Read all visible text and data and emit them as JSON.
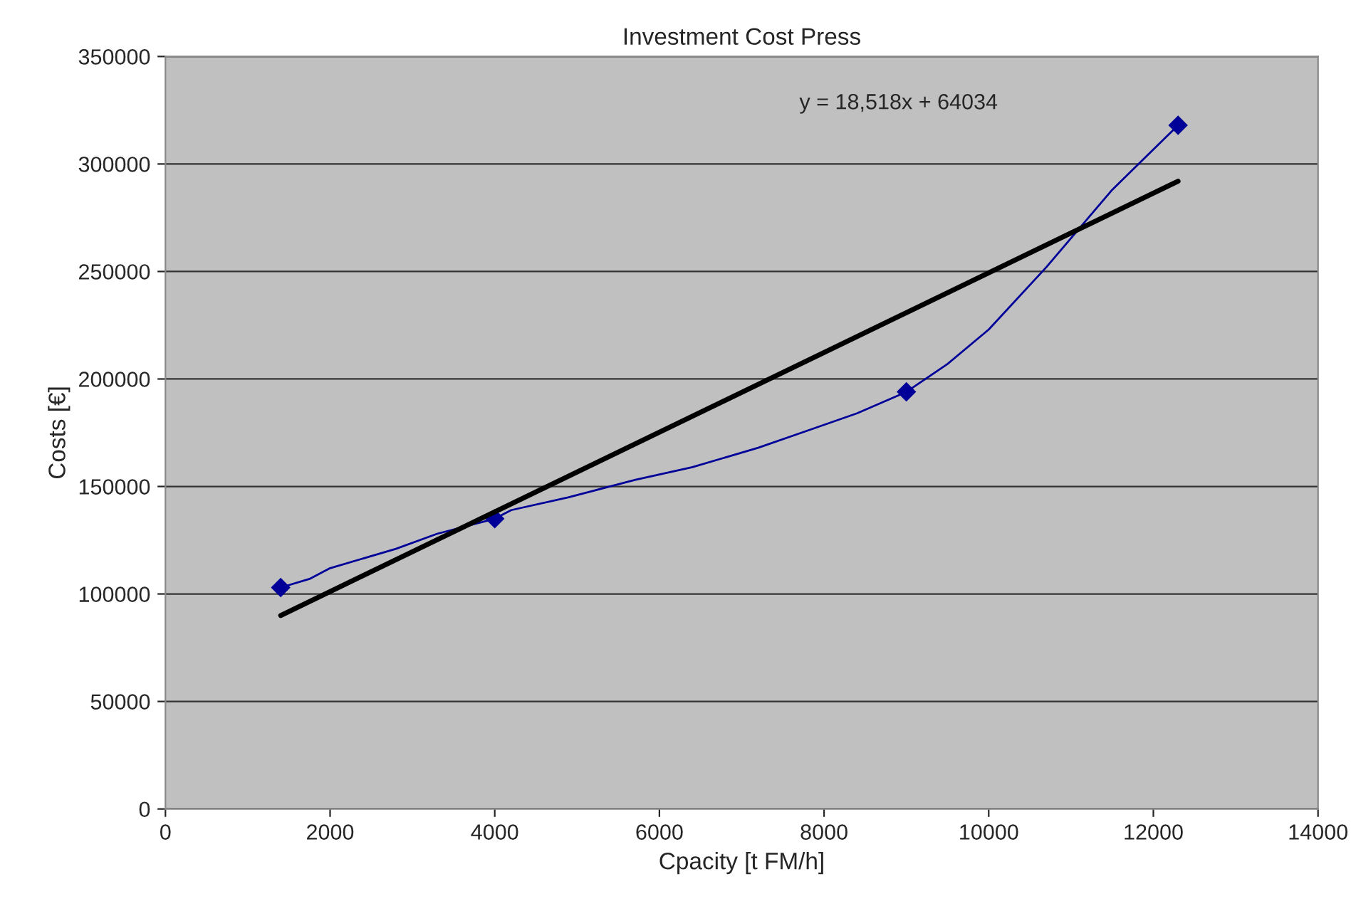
{
  "chart_data": {
    "type": "line",
    "title": "Investment Cost Press",
    "xlabel": "Cpacity [t FM/h]",
    "ylabel": "Costs [€]",
    "series": [
      {
        "color": "#000099",
        "x": [
          1400,
          1750,
          2000,
          2800,
          3300,
          4000,
          4200,
          4900,
          5700,
          6400,
          7200,
          7800,
          8400,
          9000,
          9500,
          10000,
          10700,
          11500,
          12300
        ],
        "values": [
          103000,
          107000,
          112000,
          121000,
          128000,
          135000,
          139000,
          145000,
          153000,
          159000,
          168000,
          176000,
          184000,
          194000,
          207000,
          223000,
          252000,
          288000,
          318000
        ],
        "marker": "none"
      },
      {
        "type": "scatter",
        "color": "#000099",
        "x": [
          1400,
          4000,
          9000,
          12300
        ],
        "values": [
          103000,
          135000,
          194000,
          318000
        ],
        "marker": "diamond"
      },
      {
        "color": "#000000",
        "x": [
          1400,
          12300
        ],
        "values": [
          90000,
          292000
        ],
        "marker": "none"
      }
    ],
    "annotations": [
      "y = 18,518x + 64034"
    ],
    "xlim": [
      0,
      14000
    ],
    "xticks": [
      0,
      2000,
      4000,
      6000,
      8000,
      10000,
      12000,
      14000
    ],
    "ylim": [
      0,
      350000
    ],
    "yticks": [
      0,
      50000,
      100000,
      150000,
      200000,
      250000,
      300000,
      350000
    ],
    "grid": "y",
    "legend": false
  }
}
